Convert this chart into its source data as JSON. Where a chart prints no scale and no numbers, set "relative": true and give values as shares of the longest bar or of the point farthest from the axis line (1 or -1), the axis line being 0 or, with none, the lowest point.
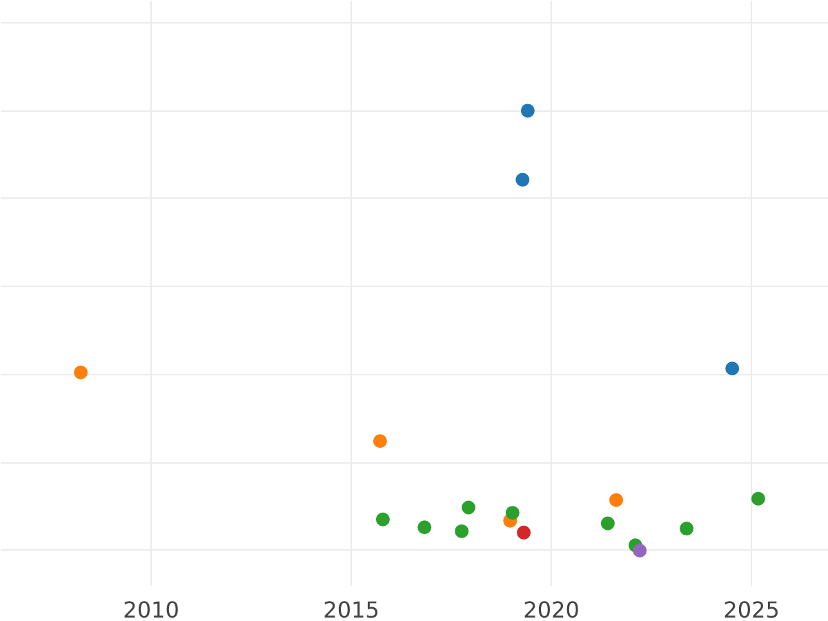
{
  "chart_data": {
    "type": "scatter",
    "relative": true,
    "grid": true,
    "marker": "circle",
    "xlim": [
      2006.24,
      2026.93
    ],
    "xticks": [
      2010,
      2015,
      2020,
      2025
    ],
    "series": [
      {
        "color": "#1f77b4",
        "x": [
          2019.41,
          2019.28,
          2024.52
        ],
        "values": [
          1,
          0.843,
          0.414
        ]
      },
      {
        "color": "#ff7f0e",
        "x": [
          2008.24,
          2015.72,
          2018.97,
          2021.62
        ],
        "values": [
          0.405,
          0.249,
          0.068,
          0.115
        ]
      },
      {
        "color": "#2ca02c",
        "x": [
          2015.79,
          2016.83,
          2017.76,
          2017.93,
          2019.03,
          2021.41,
          2022.1,
          2023.38,
          2025.17
        ],
        "values": [
          0.071,
          0.053,
          0.044,
          0.098,
          0.086,
          0.062,
          0.012,
          0.05,
          0.118
        ]
      },
      {
        "color": "#d62728",
        "x": [
          2019.31
        ],
        "values": [
          0.041
        ]
      },
      {
        "color": "#9467bd",
        "x": [
          2022.21
        ],
        "values": [
          0
        ]
      }
    ]
  }
}
